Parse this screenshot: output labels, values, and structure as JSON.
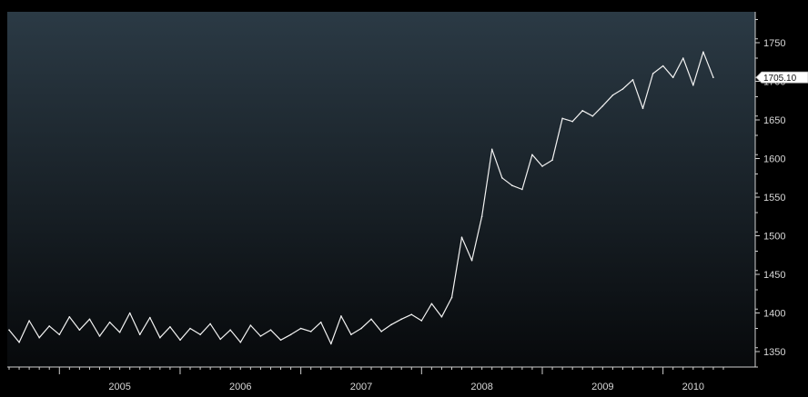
{
  "chart_data": {
    "type": "line",
    "title": "",
    "xlabel": "",
    "ylabel": "",
    "x_range": [
      "2004-08",
      "2010-07"
    ],
    "ylim": [
      1330,
      1790
    ],
    "y_ticks": [
      1350,
      1400,
      1450,
      1500,
      1550,
      1600,
      1650,
      1700,
      1750
    ],
    "x_tick_labels": [
      "2005",
      "2006",
      "2007",
      "2008",
      "2009",
      "2010"
    ],
    "grid": false,
    "colors": {
      "background_top": "#2b3a45",
      "background_bottom": "#07090b",
      "line": "#f2f2f2",
      "axis": "#cfcfcf"
    },
    "last_value_label": "1705.10",
    "series": [
      {
        "x": [
          "2004-08",
          "2004-09",
          "2004-10",
          "2004-11",
          "2004-12",
          "2005-01",
          "2005-02",
          "2005-03",
          "2005-04",
          "2005-05",
          "2005-06",
          "2005-07",
          "2005-08",
          "2005-09",
          "2005-10",
          "2005-11",
          "2005-12",
          "2006-01",
          "2006-02",
          "2006-03",
          "2006-04",
          "2006-05",
          "2006-06",
          "2006-07",
          "2006-08",
          "2006-09",
          "2006-10",
          "2006-11",
          "2006-12",
          "2007-01",
          "2007-02",
          "2007-03",
          "2007-04",
          "2007-05",
          "2007-06",
          "2007-07",
          "2007-08",
          "2007-09",
          "2007-10",
          "2007-11",
          "2007-12",
          "2008-01",
          "2008-02",
          "2008-03",
          "2008-04",
          "2008-05",
          "2008-06",
          "2008-07",
          "2008-08",
          "2008-09",
          "2008-10",
          "2008-11",
          "2008-12",
          "2009-01",
          "2009-02",
          "2009-03",
          "2009-04",
          "2009-05",
          "2009-06",
          "2009-07",
          "2009-08",
          "2009-09",
          "2009-10",
          "2009-11",
          "2009-12",
          "2010-01",
          "2010-02",
          "2010-03",
          "2010-04",
          "2010-05",
          "2010-06"
        ],
        "values": [
          1378,
          1362,
          1390,
          1368,
          1383,
          1372,
          1395,
          1378,
          1392,
          1370,
          1388,
          1375,
          1400,
          1372,
          1394,
          1368,
          1382,
          1365,
          1380,
          1372,
          1386,
          1366,
          1378,
          1362,
          1384,
          1370,
          1378,
          1365,
          1372,
          1380,
          1376,
          1388,
          1360,
          1396,
          1372,
          1380,
          1392,
          1376,
          1385,
          1392,
          1398,
          1390,
          1412,
          1395,
          1420,
          1498,
          1468,
          1525,
          1612,
          1575,
          1565,
          1560,
          1605,
          1590,
          1598,
          1652,
          1648,
          1662,
          1655,
          1668,
          1682,
          1690,
          1702,
          1665,
          1710,
          1720,
          1705,
          1730,
          1695,
          1738,
          1705.1
        ]
      }
    ]
  }
}
